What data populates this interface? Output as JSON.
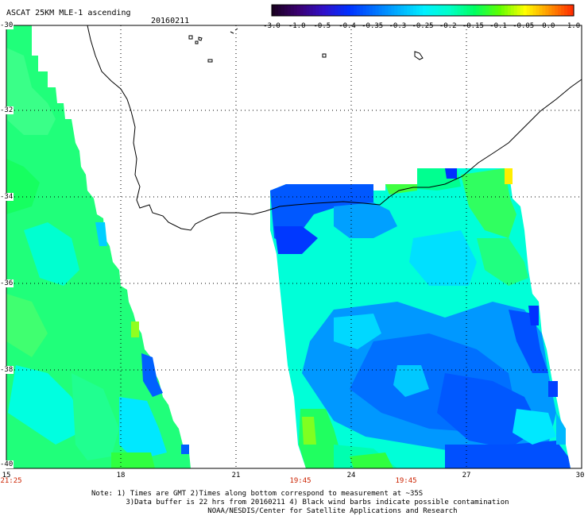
{
  "header": {
    "title": "ASCAT 25KM MLE-1 ascending",
    "date": "20160211"
  },
  "colorbar": {
    "labels": [
      "-3.0",
      "-1.0",
      "-0.5",
      "-0.4",
      "-0.35",
      "-0.3",
      "-0.25",
      "-0.2",
      "-0.15",
      "-0.1",
      "-0.05",
      "0.0",
      "1.0"
    ],
    "colors": [
      "#1a0022",
      "#3a0070",
      "#3010c8",
      "#0030ff",
      "#0070ff",
      "#00b0ff",
      "#00f0ff",
      "#00ffc8",
      "#00ff60",
      "#60ff00",
      "#ffff00",
      "#ff9000",
      "#ff2000"
    ]
  },
  "map": {
    "lon_labels": [
      "15",
      "18",
      "21",
      "24",
      "27",
      "30"
    ],
    "lat_labels": [
      "-30",
      "-32",
      "-34",
      "-36",
      "-38",
      "-40"
    ],
    "time_labels": [
      "21:25",
      "19:45",
      "19:45"
    ],
    "colors": {
      "ocean_green": "#20ff60",
      "ocean_cyan": "#00ffe0",
      "ocean_blue": "#0090ff",
      "ocean_deep": "#0050ff",
      "coast": "#000000",
      "grid": "#000000"
    }
  },
  "notes": {
    "line1": "Note: 1) Times are GMT 2)Times along bottom correspond to measurement at ~35S",
    "line2": "        3)Data buffer is 22 hrs from 20160211 4) Black wind barbs indicate possible contamination",
    "line3": "                           NOAA/NESDIS/Center for Satellite Applications and Research"
  }
}
